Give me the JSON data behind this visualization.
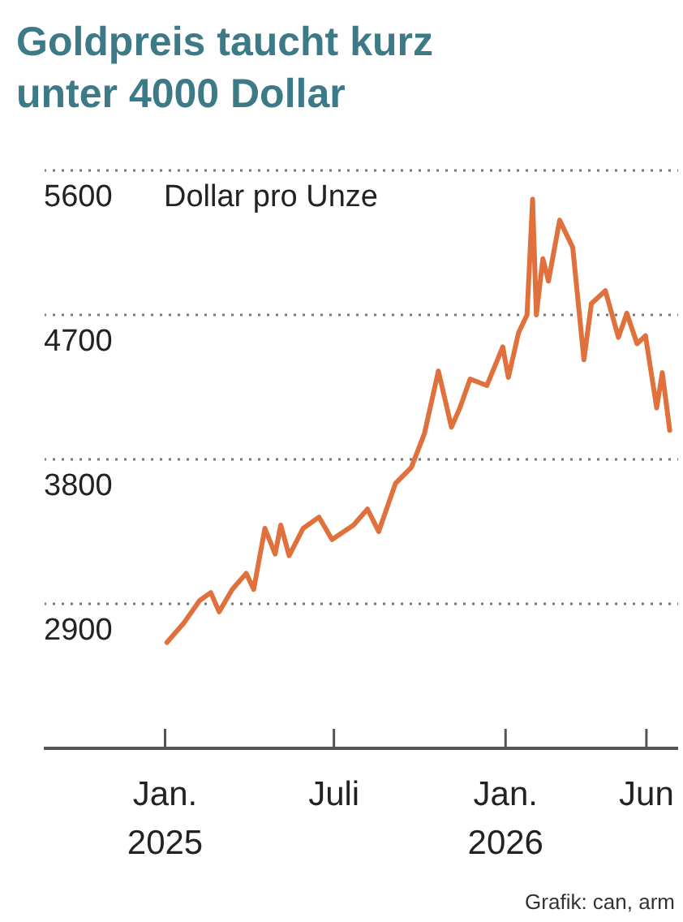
{
  "chart_data": {
    "type": "line",
    "title": "Goldpreis taucht kurz unter 4000 Dollar",
    "ylabel": "Dollar pro Unze",
    "annotations": [
      "Grafik: can, arm"
    ],
    "xlim": [
      "2024-08-24",
      "2026-07-05"
    ],
    "ylim": [
      2000,
      5650
    ],
    "xticks": [
      {
        "value": "2025-01-01",
        "label": "Jan.\n2025"
      },
      {
        "value": "2025-07-01",
        "label": "Juli"
      },
      {
        "value": "2026-01-01",
        "label": "Jan.\n2026"
      },
      {
        "value": "2026-06-01",
        "label": "Jun"
      }
    ],
    "yticks": [
      2900,
      3800,
      4700,
      5600
    ],
    "grid": "y",
    "series": [
      {
        "color": "#e0703c",
        "x": [
          "2025-01-03",
          "2025-01-21",
          "2025-02-07",
          "2025-02-19",
          "2025-02-28",
          "2025-03-14",
          "2025-03-29",
          "2025-04-06",
          "2025-04-18",
          "2025-04-29",
          "2025-05-05",
          "2025-05-14",
          "2025-05-29",
          "2025-06-15",
          "2025-06-29",
          "2025-07-22",
          "2025-08-06",
          "2025-08-18",
          "2025-09-05",
          "2025-09-22",
          "2025-10-06",
          "2025-10-21",
          "2025-11-04",
          "2025-11-13",
          "2025-11-24",
          "2025-12-12",
          "2025-12-29",
          "2026-01-04",
          "2026-01-15",
          "2026-01-24",
          "2026-01-30",
          "2026-02-03",
          "2026-02-10",
          "2026-02-16",
          "2026-02-28",
          "2026-03-14",
          "2026-03-26",
          "2026-04-03",
          "2026-04-18",
          "2026-05-02",
          "2026-05-11",
          "2026-05-22",
          "2026-05-31",
          "2026-06-12",
          "2026-06-18",
          "2026-06-26"
        ],
        "values": [
          2660,
          2780,
          2920,
          2970,
          2850,
          2990,
          3090,
          2990,
          3370,
          3210,
          3390,
          3200,
          3370,
          3440,
          3300,
          3390,
          3490,
          3350,
          3650,
          3750,
          3960,
          4350,
          4000,
          4120,
          4300,
          4260,
          4500,
          4310,
          4590,
          4700,
          5420,
          4700,
          5050,
          4910,
          5290,
          5120,
          4420,
          4770,
          4850,
          4560,
          4710,
          4520,
          4570,
          4120,
          4340,
          3980
        ]
      }
    ]
  }
}
